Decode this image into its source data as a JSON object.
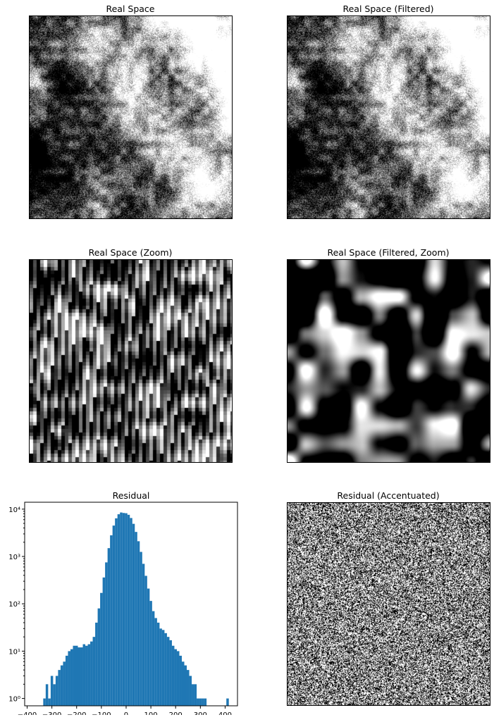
{
  "panels": {
    "real_space": {
      "title": "Real Space"
    },
    "real_space_filtered": {
      "title": "Real Space (Filtered)"
    },
    "real_space_zoom": {
      "title": "Real Space (Zoom)"
    },
    "real_space_filtered_zoom": {
      "title": "Real Space (Filtered, Zoom)"
    },
    "residual": {
      "title": "Residual"
    },
    "residual_accentuated": {
      "title": "Residual (Accentuated)"
    }
  },
  "chart_data": {
    "type": "bar",
    "title": "Residual",
    "xlabel": "",
    "ylabel": "",
    "xlim": [
      -410,
      450
    ],
    "ylim": [
      0.7,
      14000
    ],
    "yscale": "log",
    "x_ticks": [
      -400,
      -300,
      -200,
      -100,
      0,
      100,
      200,
      300,
      400
    ],
    "x_tick_labels": [
      "−400",
      "−300",
      "−200",
      "−100",
      "0",
      "100",
      "200",
      "300",
      "400"
    ],
    "y_ticks": [
      1,
      10,
      100,
      1000,
      10000
    ],
    "y_tick_labels": [
      "10⁰",
      "10¹",
      "10²",
      "10³",
      "10⁴"
    ],
    "bar_color": "#1f77b4",
    "grid": false,
    "bins": {
      "x": [
        -330,
        -320,
        -310,
        -300,
        -290,
        -280,
        -270,
        -260,
        -250,
        -240,
        -230,
        -220,
        -210,
        -200,
        -190,
        -180,
        -170,
        -160,
        -150,
        -140,
        -130,
        -120,
        -110,
        -100,
        -90,
        -80,
        -70,
        -60,
        -50,
        -40,
        -30,
        -20,
        -10,
        0,
        10,
        20,
        30,
        40,
        50,
        60,
        70,
        80,
        90,
        100,
        110,
        120,
        130,
        140,
        150,
        160,
        170,
        180,
        190,
        200,
        210,
        220,
        230,
        240,
        250,
        260,
        270,
        280,
        290,
        300,
        310,
        320,
        410
      ],
      "values": [
        1,
        2,
        1,
        3,
        2,
        3,
        4,
        5,
        6,
        8,
        10,
        11,
        13,
        13,
        12,
        12,
        14,
        13,
        14,
        16,
        20,
        40,
        80,
        170,
        360,
        750,
        1500,
        2800,
        4500,
        6400,
        7800,
        8500,
        8300,
        8200,
        7600,
        6500,
        4900,
        3300,
        2100,
        1250,
        700,
        390,
        210,
        115,
        70,
        50,
        40,
        30,
        28,
        24,
        20,
        17,
        13,
        11,
        10,
        8,
        6,
        5,
        4,
        3,
        2,
        2,
        1,
        1,
        1,
        1,
        1
      ]
    }
  },
  "chart_data_images": [
    {
      "panel": "real_space",
      "type": "image",
      "colormap": "gray"
    },
    {
      "panel": "real_space_filtered",
      "type": "image",
      "colormap": "gray"
    },
    {
      "panel": "real_space_zoom",
      "type": "image",
      "colormap": "gray"
    },
    {
      "panel": "real_space_filtered_zoom",
      "type": "image",
      "colormap": "gray"
    },
    {
      "panel": "residual_accentuated",
      "type": "image",
      "colormap": "gray"
    }
  ]
}
